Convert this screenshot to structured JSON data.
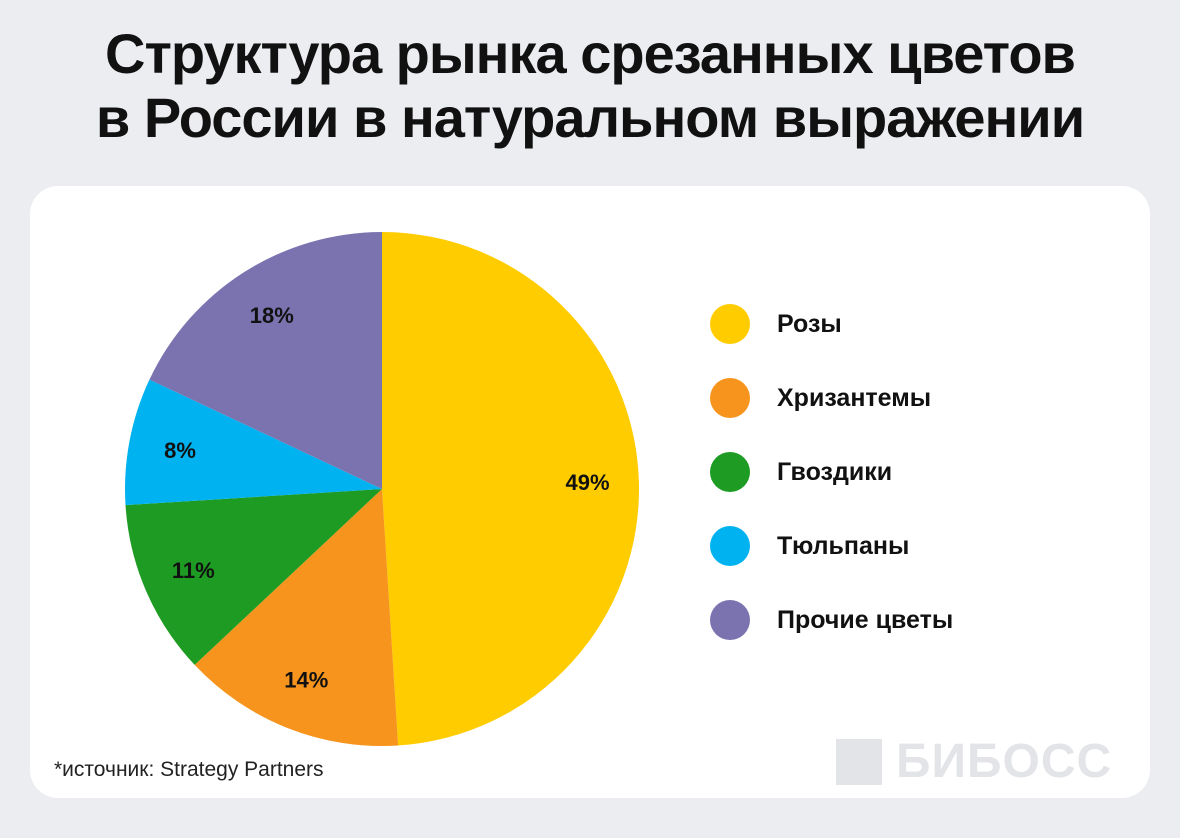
{
  "title": {
    "line1": "Структура рынка срезанных цветов",
    "line2": "в России в натуральном выражении"
  },
  "chart_data": {
    "type": "pie",
    "title": "Структура рынка срезанных цветов в России в натуральном выражении",
    "slices": [
      {
        "name": "Розы",
        "value": 49,
        "label": "49%",
        "color": "#FFCC00"
      },
      {
        "name": "Хризантемы",
        "value": 14,
        "label": "14%",
        "color": "#F7941D"
      },
      {
        "name": "Гвоздики",
        "value": 11,
        "label": "11%",
        "color": "#1E9B22"
      },
      {
        "name": "Тюльпаны",
        "value": 8,
        "label": "8%",
        "color": "#00B2F0"
      },
      {
        "name": "Прочие цветы",
        "value": 18,
        "label": "18%",
        "color": "#7B72B0"
      }
    ],
    "legend_position": "right"
  },
  "footer": {
    "source": "*источник: Strategy Partners",
    "brand": "БИБОСС"
  }
}
